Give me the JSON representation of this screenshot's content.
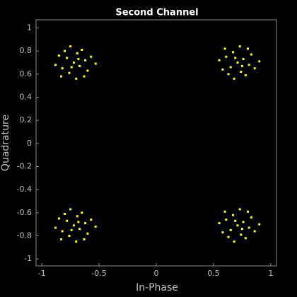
{
  "chart_data": {
    "type": "scatter",
    "title": "Second Channel",
    "x_label": "In-Phase",
    "y_label": "Quadrature",
    "xlim": [
      -1.05,
      1.05
    ],
    "ylim": [
      -1.06,
      1.07
    ],
    "xticks": [
      -1,
      -0.5,
      0,
      0.5,
      1
    ],
    "yticks": [
      -1,
      -0.8,
      -0.6,
      -0.4,
      -0.2,
      0,
      0.2,
      0.4,
      0.6,
      0.8,
      1
    ],
    "series": [
      {
        "color": "#ffff00",
        "x": [
          -0.72,
          -0.67,
          -0.78,
          -0.62,
          -0.82,
          -0.69,
          -0.76,
          -0.6,
          -0.85,
          -0.65,
          -0.8,
          -0.7,
          -0.57,
          -0.88,
          -0.63,
          -0.75,
          -0.53,
          -0.83,
          -0.68,
          -0.74,
          0.71,
          0.76,
          0.65,
          0.81,
          0.61,
          0.74,
          0.67,
          0.83,
          0.58,
          0.78,
          0.63,
          0.73,
          0.86,
          0.55,
          0.8,
          0.68,
          0.9,
          0.6,
          0.75,
          0.69,
          -0.72,
          -0.67,
          -0.78,
          -0.62,
          -0.82,
          -0.69,
          -0.76,
          -0.6,
          -0.85,
          -0.65,
          -0.8,
          -0.7,
          -0.57,
          -0.88,
          -0.63,
          -0.75,
          -0.53,
          -0.83,
          -0.68,
          -0.74,
          0.71,
          0.76,
          0.65,
          0.81,
          0.61,
          0.74,
          0.67,
          0.83,
          0.58,
          0.78,
          0.63,
          0.73,
          0.86,
          0.55,
          0.8,
          0.68,
          0.9,
          0.6,
          0.75,
          0.69
        ],
        "values": [
          0.7,
          0.67,
          0.74,
          0.72,
          0.65,
          0.78,
          0.61,
          0.63,
          0.76,
          0.81,
          0.8,
          0.56,
          0.75,
          0.68,
          0.58,
          0.84,
          0.69,
          0.58,
          0.73,
          0.66,
          0.7,
          0.73,
          0.66,
          0.68,
          0.75,
          0.62,
          0.79,
          0.77,
          0.64,
          0.59,
          0.6,
          0.84,
          0.65,
          0.72,
          0.82,
          0.56,
          0.71,
          0.82,
          0.67,
          0.74,
          -0.71,
          -0.74,
          -0.67,
          -0.69,
          -0.76,
          -0.63,
          -0.8,
          -0.78,
          -0.65,
          -0.6,
          -0.61,
          -0.85,
          -0.66,
          -0.73,
          -0.83,
          -0.57,
          -0.72,
          -0.83,
          -0.68,
          -0.75,
          -0.71,
          -0.68,
          -0.75,
          -0.73,
          -0.66,
          -0.79,
          -0.62,
          -0.64,
          -0.77,
          -0.82,
          -0.81,
          -0.57,
          -0.76,
          -0.69,
          -0.59,
          -0.85,
          -0.7,
          -0.59,
          -0.74,
          -0.67
        ]
      }
    ]
  }
}
